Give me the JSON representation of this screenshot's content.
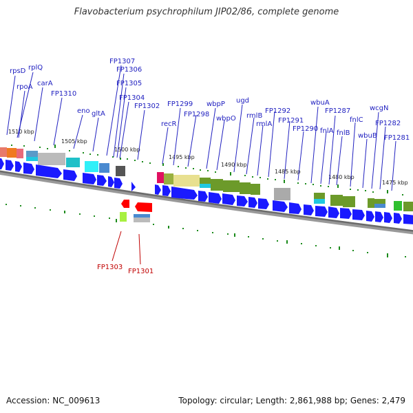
{
  "title": "Flavobacterium psychrophilum JIP02/86, complete genome",
  "footer": {
    "accession": "Accession: NC_009613",
    "summary": "Topology: circular; Length: 2,861,988 bp; Genes: 2,479"
  },
  "colors": {
    "forward_label": "#2020c0",
    "reverse_label": "#c00000",
    "gene_arrow": "#1010f0",
    "backbone": "#777777",
    "tick": "#1a7a1a"
  },
  "ticks": [
    "1510 kbp",
    "1505 kbp",
    "1500 kbp",
    "1495 kbp",
    "1490 kbp",
    "1485 kbp",
    "1480 kbp",
    "1475 kbp"
  ],
  "forward_genes": [
    "rpsD",
    "rplQ",
    "rpoA",
    "carA",
    "FP1310",
    "eno",
    "gltA",
    "FP1307",
    "FP1306",
    "FP1305",
    "FP1304",
    "FP1302",
    "recR",
    "FP1299",
    "FP1298",
    "wbpP",
    "wbpO",
    "ugd",
    "rmlB",
    "rmlA",
    "FP1292",
    "FP1291",
    "FP1290",
    "wbuA",
    "fnlA",
    "FP1287",
    "fnlB",
    "fnlC",
    "wbuB",
    "wcgN",
    "FP1282",
    "FP1281"
  ],
  "reverse_genes": [
    "FP1303",
    "FP1301"
  ]
}
